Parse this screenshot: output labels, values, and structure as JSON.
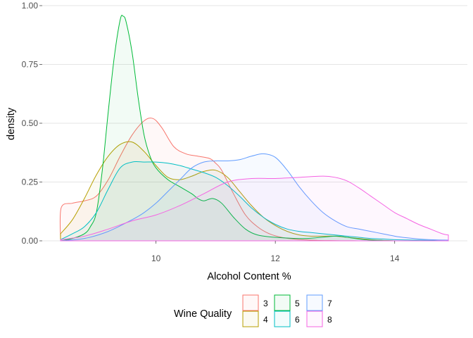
{
  "chart_data": {
    "type": "area",
    "title": "",
    "xlabel": "Alcohol Content %",
    "ylabel": "density",
    "xlim": [
      8.4,
      14.9
    ],
    "ylim": [
      0,
      1.0
    ],
    "x_ticks": [
      10,
      12,
      14
    ],
    "x_tick_labels": [
      "10",
      "12",
      "14"
    ],
    "y_ticks": [
      0,
      0.25,
      0.5,
      0.75,
      1.0
    ],
    "y_tick_labels": [
      "0.00",
      "0.25",
      "0.50",
      "0.75",
      "1.00"
    ],
    "grid": true,
    "legend": {
      "title": "Wine Quality",
      "position": "bottom"
    },
    "series": [
      {
        "name": "3",
        "color": "#F8766D",
        "x": [
          8.4,
          8.41,
          8.6,
          8.8,
          9.0,
          9.2,
          9.4,
          9.6,
          9.8,
          9.95,
          10.1,
          10.3,
          10.5,
          10.7,
          10.9,
          11.0,
          11.1,
          11.3,
          11.5,
          11.7,
          11.9,
          12.1,
          12.3,
          12.5,
          12.7,
          12.9,
          13.1,
          13.3,
          13.5,
          13.7,
          13.9
        ],
        "y": [
          0.0,
          0.14,
          0.16,
          0.17,
          0.19,
          0.26,
          0.36,
          0.45,
          0.51,
          0.52,
          0.48,
          0.4,
          0.37,
          0.36,
          0.35,
          0.33,
          0.3,
          0.2,
          0.11,
          0.06,
          0.03,
          0.015,
          0.008,
          0.004,
          0.002,
          0.001,
          0.0005,
          0.0002,
          0.0001,
          0.0,
          0.0
        ]
      },
      {
        "name": "4",
        "color": "#B79F00",
        "x": [
          8.4,
          8.6,
          8.8,
          9.0,
          9.2,
          9.4,
          9.6,
          9.8,
          10.0,
          10.2,
          10.4,
          10.6,
          10.8,
          11.0,
          11.2,
          11.4,
          11.6,
          11.8,
          12.0,
          12.2,
          12.4,
          12.6,
          12.8,
          13.0,
          13.2,
          13.4,
          13.6,
          13.8,
          14.0
        ],
        "y": [
          0.03,
          0.09,
          0.18,
          0.28,
          0.36,
          0.41,
          0.42,
          0.38,
          0.32,
          0.27,
          0.26,
          0.275,
          0.295,
          0.3,
          0.27,
          0.21,
          0.15,
          0.1,
          0.065,
          0.04,
          0.025,
          0.02,
          0.02,
          0.02,
          0.015,
          0.01,
          0.005,
          0.002,
          0.0
        ]
      },
      {
        "name": "5",
        "color": "#00BA38",
        "x": [
          8.4,
          8.6,
          8.8,
          8.9,
          9.0,
          9.1,
          9.2,
          9.3,
          9.4,
          9.45,
          9.5,
          9.6,
          9.7,
          9.8,
          9.9,
          10.0,
          10.2,
          10.4,
          10.6,
          10.7,
          10.8,
          10.95,
          11.1,
          11.3,
          11.5,
          11.7,
          12.0,
          12.5,
          13.0,
          13.2,
          13.5,
          14.0
        ],
        "y": [
          0.0,
          0.01,
          0.03,
          0.06,
          0.12,
          0.3,
          0.55,
          0.78,
          0.94,
          0.955,
          0.93,
          0.8,
          0.61,
          0.45,
          0.36,
          0.31,
          0.26,
          0.23,
          0.2,
          0.18,
          0.17,
          0.18,
          0.16,
          0.1,
          0.05,
          0.025,
          0.015,
          0.01,
          0.02,
          0.015,
          0.005,
          0.0
        ]
      },
      {
        "name": "6",
        "color": "#00BFC4",
        "x": [
          8.4,
          8.6,
          8.8,
          9.0,
          9.2,
          9.4,
          9.6,
          9.8,
          10.0,
          10.2,
          10.4,
          10.6,
          10.8,
          11.0,
          11.2,
          11.4,
          11.6,
          11.8,
          12.0,
          12.2,
          12.4,
          12.6,
          12.8,
          13.0,
          13.2,
          13.4,
          13.6,
          13.8,
          14.0,
          14.4,
          14.9
        ],
        "y": [
          0.005,
          0.03,
          0.06,
          0.12,
          0.22,
          0.31,
          0.335,
          0.335,
          0.335,
          0.33,
          0.32,
          0.305,
          0.29,
          0.27,
          0.235,
          0.19,
          0.14,
          0.1,
          0.07,
          0.05,
          0.04,
          0.035,
          0.03,
          0.025,
          0.02,
          0.015,
          0.01,
          0.008,
          0.005,
          0.003,
          0.0
        ]
      },
      {
        "name": "7",
        "color": "#619CFF",
        "x": [
          8.4,
          8.8,
          9.2,
          9.6,
          9.8,
          10.0,
          10.2,
          10.4,
          10.6,
          10.8,
          11.0,
          11.2,
          11.4,
          11.6,
          11.8,
          12.0,
          12.2,
          12.4,
          12.6,
          12.8,
          13.0,
          13.2,
          13.4,
          13.6,
          13.8,
          14.0,
          14.2,
          14.4,
          14.6,
          14.9
        ],
        "y": [
          0.0,
          0.01,
          0.04,
          0.09,
          0.12,
          0.16,
          0.21,
          0.26,
          0.31,
          0.335,
          0.34,
          0.34,
          0.345,
          0.36,
          0.37,
          0.355,
          0.3,
          0.23,
          0.17,
          0.12,
          0.085,
          0.06,
          0.05,
          0.04,
          0.03,
          0.02,
          0.013,
          0.008,
          0.005,
          0.003
        ]
      },
      {
        "name": "8",
        "color": "#F564E3",
        "x": [
          8.4,
          8.8,
          9.2,
          9.6,
          10.0,
          10.4,
          10.8,
          11.2,
          11.6,
          12.0,
          12.4,
          12.8,
          13.0,
          13.2,
          13.4,
          13.6,
          13.8,
          14.0,
          14.2,
          14.4,
          14.6,
          14.8,
          14.9
        ],
        "y": [
          0.005,
          0.02,
          0.05,
          0.085,
          0.11,
          0.15,
          0.2,
          0.25,
          0.265,
          0.265,
          0.27,
          0.275,
          0.27,
          0.255,
          0.225,
          0.19,
          0.155,
          0.12,
          0.095,
          0.07,
          0.05,
          0.03,
          0.025
        ]
      }
    ]
  }
}
